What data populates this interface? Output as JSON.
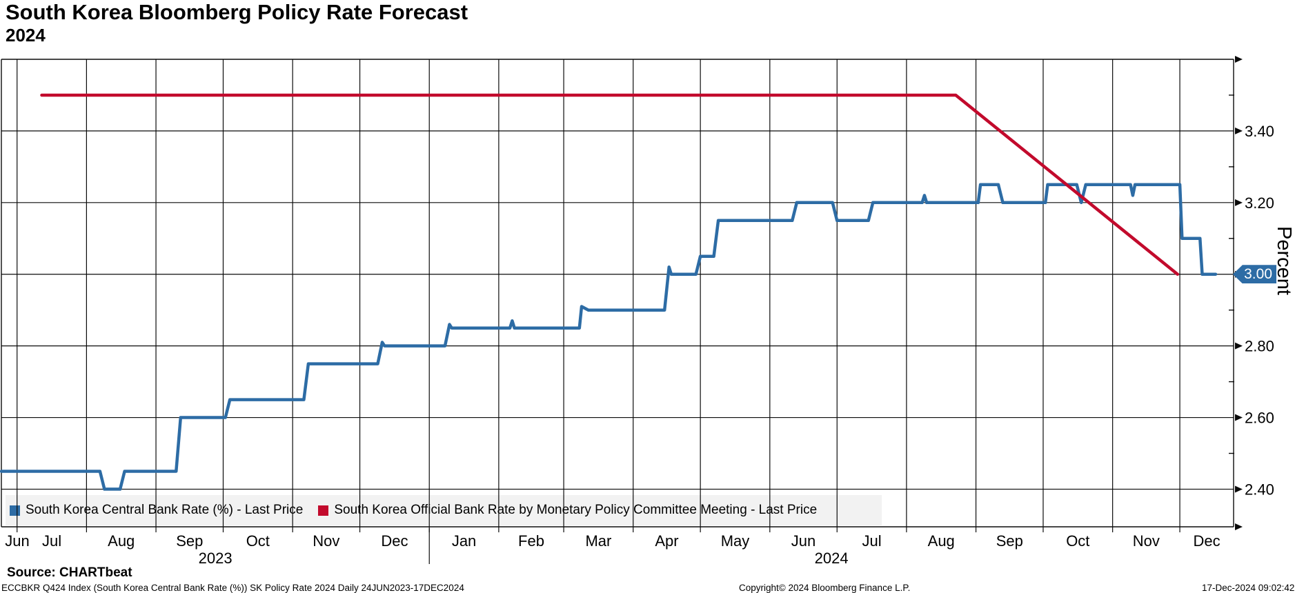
{
  "header": {
    "title": "South Korea Bloomberg Policy Rate Forecast",
    "subtitle": "2024"
  },
  "legend": {
    "items": [
      {
        "label": "South Korea Central Bank Rate (%) - Last Price",
        "color": "#2d6ca5"
      },
      {
        "label": "South Korea Official Bank Rate by Monetary Policy Committee Meeting - Last Price",
        "color": "#c20a2c"
      }
    ]
  },
  "y_axis": {
    "title": "Percent",
    "last_price": "3.00"
  },
  "footer": {
    "source": "Source: CHARTbeat",
    "description": "ECCBKR Q424 Index (South Korea Central Bank Rate (%)) SK Policy Rate 2024  Daily 24JUN2023-17DEC2024",
    "copyright": "Copyright© 2024 Bloomberg Finance L.P.",
    "timestamp": "17-Dec-2024 09:02:42"
  },
  "chart_data": {
    "type": "line",
    "title": "South Korea Bloomberg Policy Rate Forecast 2024",
    "ylabel": "Percent",
    "ylim": [
      2.295,
      3.6
    ],
    "x_range": [
      "2023-06-24",
      "2024-12-25"
    ],
    "y_ticks_major": [
      2.4,
      2.6,
      2.8,
      3.0,
      3.2,
      3.4
    ],
    "y_ticks_minor": [
      2.5,
      2.7,
      2.9,
      3.1,
      3.3,
      3.5
    ],
    "x_months": [
      "Jun",
      "Jul",
      "Aug",
      "Sep",
      "Oct",
      "Nov",
      "Dec",
      "Jan",
      "Feb",
      "Mar",
      "Apr",
      "May",
      "Jun",
      "Jul",
      "Aug",
      "Sep",
      "Oct",
      "Nov",
      "Dec"
    ],
    "x_years": [
      "2023",
      "2024"
    ],
    "grid": true,
    "legend_position": "bottom-left-inside",
    "last_price_marker": {
      "value": 3.0,
      "label": "3.00"
    },
    "series": [
      {
        "name": "South Korea Central Bank Rate (%) - Last Price",
        "color": "#2d6ca5",
        "points": [
          [
            "2023-06-24",
            2.45
          ],
          [
            "2023-08-07",
            2.45
          ],
          [
            "2023-08-09",
            2.4
          ],
          [
            "2023-08-16",
            2.4
          ],
          [
            "2023-08-18",
            2.45
          ],
          [
            "2023-09-10",
            2.45
          ],
          [
            "2023-09-12",
            2.6
          ],
          [
            "2023-10-02",
            2.6
          ],
          [
            "2023-10-04",
            2.65
          ],
          [
            "2023-11-06",
            2.65
          ],
          [
            "2023-11-08",
            2.75
          ],
          [
            "2023-12-09",
            2.75
          ],
          [
            "2023-12-11",
            2.81
          ],
          [
            "2023-12-12",
            2.8
          ],
          [
            "2024-01-08",
            2.8
          ],
          [
            "2024-01-10",
            2.86
          ],
          [
            "2024-01-11",
            2.85
          ],
          [
            "2024-02-06",
            2.85
          ],
          [
            "2024-02-07",
            2.87
          ],
          [
            "2024-02-08",
            2.85
          ],
          [
            "2024-03-08",
            2.85
          ],
          [
            "2024-03-09",
            2.91
          ],
          [
            "2024-03-12",
            2.9
          ],
          [
            "2024-04-15",
            2.9
          ],
          [
            "2024-04-17",
            3.02
          ],
          [
            "2024-04-18",
            3.0
          ],
          [
            "2024-04-29",
            3.0
          ],
          [
            "2024-05-01",
            3.05
          ],
          [
            "2024-05-07",
            3.05
          ],
          [
            "2024-05-09",
            3.15
          ],
          [
            "2024-06-11",
            3.15
          ],
          [
            "2024-06-13",
            3.2
          ],
          [
            "2024-06-29",
            3.2
          ],
          [
            "2024-07-01",
            3.15
          ],
          [
            "2024-07-15",
            3.15
          ],
          [
            "2024-07-17",
            3.2
          ],
          [
            "2024-08-08",
            3.2
          ],
          [
            "2024-08-09",
            3.22
          ],
          [
            "2024-08-10",
            3.2
          ],
          [
            "2024-09-02",
            3.2
          ],
          [
            "2024-09-03",
            3.25
          ],
          [
            "2024-09-11",
            3.25
          ],
          [
            "2024-09-13",
            3.2
          ],
          [
            "2024-10-02",
            3.2
          ],
          [
            "2024-10-03",
            3.25
          ],
          [
            "2024-10-16",
            3.25
          ],
          [
            "2024-10-18",
            3.2
          ],
          [
            "2024-10-20",
            3.25
          ],
          [
            "2024-11-09",
            3.25
          ],
          [
            "2024-11-10",
            3.22
          ],
          [
            "2024-11-11",
            3.25
          ],
          [
            "2024-12-01",
            3.25
          ],
          [
            "2024-12-02",
            3.1
          ],
          [
            "2024-12-10",
            3.1
          ],
          [
            "2024-12-11",
            3.0
          ],
          [
            "2024-12-17",
            3.0
          ]
        ]
      },
      {
        "name": "South Korea Official Bank Rate by Monetary Policy Committee Meeting - Last Price",
        "color": "#c20a2c",
        "points": [
          [
            "2023-07-12",
            3.5
          ],
          [
            "2024-08-23",
            3.5
          ],
          [
            "2024-11-30",
            3.0
          ]
        ]
      }
    ]
  }
}
